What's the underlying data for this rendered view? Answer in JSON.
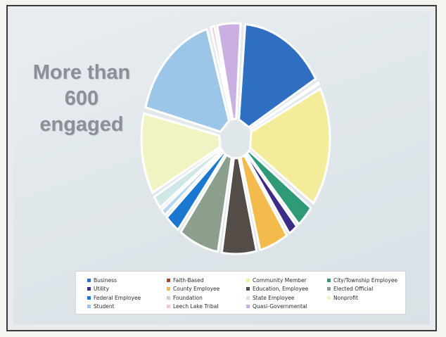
{
  "slide": {
    "headline": [
      "More than",
      "600",
      "engaged"
    ]
  },
  "chart_data": {
    "type": "pie",
    "title": "",
    "legend_position": "bottom",
    "legend": [
      {
        "name": "Business",
        "color": "#2f6fc2"
      },
      {
        "name": "Faith-Based",
        "color": "#c0392b"
      },
      {
        "name": "Community Member",
        "color": "#f3ec9a"
      },
      {
        "name": "City/Township Employee",
        "color": "#2f9a78"
      },
      {
        "name": "Utility",
        "color": "#3d2c86"
      },
      {
        "name": "County Employee",
        "color": "#f2bb4c"
      },
      {
        "name": "Education, Employee",
        "color": "#544c46"
      },
      {
        "name": "Elected Official",
        "color": "#8c9e8c"
      },
      {
        "name": "Federal Employee",
        "color": "#1a78d0"
      },
      {
        "name": "Foundation",
        "color": "#b5d6ee"
      },
      {
        "name": "State Employee",
        "color": "#cfe7e6"
      },
      {
        "name": "Nonprofit",
        "color": "#f2f3c2"
      },
      {
        "name": "Student",
        "color": "#9cc6e8"
      },
      {
        "name": "Leech Lake Tribal",
        "color": "#f1c8d6"
      },
      {
        "name": "Quasi-Governmental",
        "color": "#cab0e2"
      }
    ],
    "slices": [
      {
        "name": "Business",
        "value": 15.5,
        "color": "#2f6fc2"
      },
      {
        "name": "Faith-Based",
        "value": 0.6,
        "color": "#c0392b"
      },
      {
        "name": "Community Member",
        "value": 17.5,
        "color": "#f3ec9a"
      },
      {
        "name": "City/Township Employee",
        "value": 3.5,
        "color": "#2f9a78"
      },
      {
        "name": "Utility",
        "value": 2.0,
        "color": "#3d2c86"
      },
      {
        "name": "County Employee",
        "value": 5.5,
        "color": "#f2bb4c"
      },
      {
        "name": "Education, Employee",
        "value": 6.5,
        "color": "#544c46"
      },
      {
        "name": "Elected Official",
        "value": 7.5,
        "color": "#8c9e8c"
      },
      {
        "name": "Federal Employee",
        "value": 3.0,
        "color": "#1a78d0"
      },
      {
        "name": "Foundation",
        "value": 1.3,
        "color": "#b5d6ee"
      },
      {
        "name": "State Employee",
        "value": 2.2,
        "color": "#cfe7e6"
      },
      {
        "name": "Nonprofit",
        "value": 12.0,
        "color": "#f2f3c2"
      },
      {
        "name": "Student",
        "value": 16.5,
        "color": "#9cc6e8"
      },
      {
        "name": "Leech Lake Tribal",
        "value": 1.0,
        "color": "#f1c8d6"
      },
      {
        "name": "Quasi-Governmental",
        "value": 4.5,
        "color": "#cab0e2"
      }
    ]
  }
}
